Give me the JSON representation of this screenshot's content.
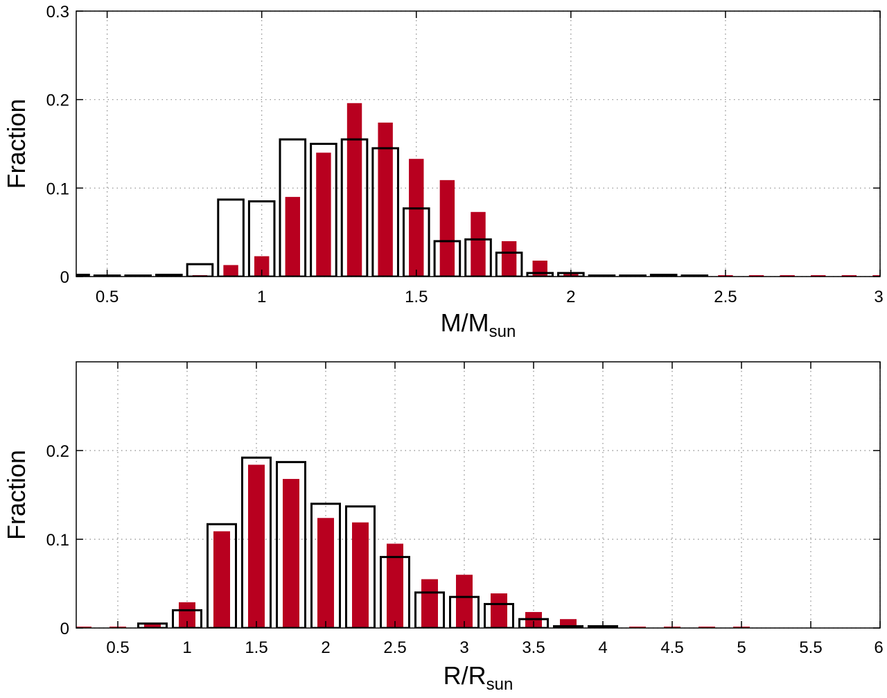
{
  "colors": {
    "filled": "#b8001f",
    "outline": "#000000",
    "grid": "#888888"
  },
  "chart_data": [
    {
      "type": "bar",
      "title": "",
      "ylabel": "Fraction",
      "xlabel_main": "M/M",
      "xlabel_sub": "sun",
      "xlim": [
        0.4,
        3.0
      ],
      "ylim": [
        0,
        0.3
      ],
      "xticks": [
        0.5,
        1,
        1.5,
        2,
        2.5,
        3
      ],
      "xtick_labels": [
        "0.5",
        "1",
        "1.5",
        "2",
        "2.5",
        "3"
      ],
      "yticks": [
        0,
        0.1,
        0.2,
        0.3
      ],
      "ytick_labels": [
        "0",
        "0.1",
        "0.2",
        "0.3"
      ],
      "bin_width": 0.1,
      "series": [
        {
          "name": "filled",
          "style": "filled",
          "x": [
            0.5,
            0.6,
            0.7,
            0.8,
            0.9,
            1.0,
            1.1,
            1.2,
            1.3,
            1.4,
            1.5,
            1.6,
            1.7,
            1.8,
            1.9,
            2.0,
            2.1,
            2.2,
            2.3,
            2.4,
            2.5,
            2.6,
            2.7,
            2.8,
            2.9,
            3.0
          ],
          "values": [
            0.001,
            0.001,
            0.0,
            0.001,
            0.013,
            0.023,
            0.09,
            0.14,
            0.196,
            0.174,
            0.133,
            0.109,
            0.073,
            0.04,
            0.018,
            0.003,
            0.001,
            0.001,
            0.001,
            0.001,
            0.001,
            0.001,
            0.001,
            0.001,
            0.001,
            0.001
          ]
        },
        {
          "name": "outline",
          "style": "outline",
          "x": [
            0.4,
            0.5,
            0.6,
            0.7,
            0.8,
            0.9,
            1.0,
            1.1,
            1.2,
            1.3,
            1.4,
            1.5,
            1.6,
            1.7,
            1.8,
            1.9,
            2.0,
            2.1,
            2.2,
            2.3,
            2.4
          ],
          "values": [
            0.002,
            0.0,
            0.0,
            0.002,
            0.014,
            0.087,
            0.085,
            0.155,
            0.15,
            0.155,
            0.145,
            0.077,
            0.04,
            0.042,
            0.027,
            0.004,
            0.004,
            0.0,
            0.0,
            0.002,
            0.0
          ]
        }
      ]
    },
    {
      "type": "bar",
      "title": "",
      "ylabel": "Fraction",
      "xlabel_main": "R/R",
      "xlabel_sub": "sun",
      "xlim": [
        0.2,
        6.0
      ],
      "ylim": [
        0,
        0.3
      ],
      "xticks": [
        0.5,
        1,
        1.5,
        2,
        2.5,
        3,
        3.5,
        4,
        4.5,
        5,
        5.5,
        6
      ],
      "xtick_labels": [
        "0.5",
        "1",
        "1.5",
        "2",
        "2.5",
        "3",
        "3.5",
        "4",
        "4.5",
        "5",
        "5.5",
        "6"
      ],
      "yticks": [
        0,
        0.1,
        0.2
      ],
      "ytick_labels": [
        "0",
        "0.1",
        "0.2"
      ],
      "bin_width": 0.25,
      "series": [
        {
          "name": "filled",
          "style": "filled",
          "x": [
            0.25,
            0.5,
            0.75,
            1.0,
            1.25,
            1.5,
            1.75,
            2.0,
            2.25,
            2.5,
            2.75,
            3.0,
            3.25,
            3.5,
            3.75,
            4.0,
            4.25,
            4.5,
            4.75,
            5.0
          ],
          "values": [
            0.001,
            0.001,
            0.004,
            0.029,
            0.109,
            0.184,
            0.168,
            0.124,
            0.119,
            0.095,
            0.055,
            0.06,
            0.039,
            0.018,
            0.01,
            0.001,
            0.001,
            0.001,
            0.001,
            0.001
          ]
        },
        {
          "name": "outline",
          "style": "outline",
          "x": [
            0.75,
            1.0,
            1.25,
            1.5,
            1.75,
            2.0,
            2.25,
            2.5,
            2.75,
            3.0,
            3.25,
            3.5,
            3.75,
            4.0
          ],
          "values": [
            0.005,
            0.02,
            0.117,
            0.192,
            0.187,
            0.14,
            0.137,
            0.08,
            0.04,
            0.035,
            0.027,
            0.01,
            0.002,
            0.002
          ]
        }
      ]
    }
  ]
}
